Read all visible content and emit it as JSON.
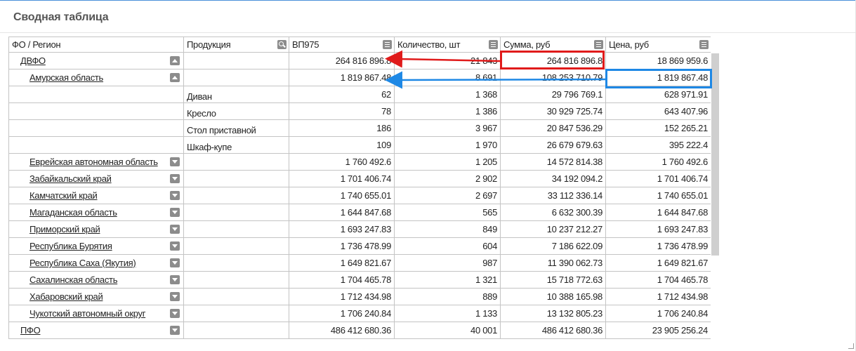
{
  "title": "Сводная таблица",
  "columns": [
    "ФО / Регион",
    "Продукция",
    "ВП975",
    "Количество, шт",
    "Сумма, руб",
    "Цена, руб"
  ],
  "rows": [
    {
      "region": "ДВФО",
      "level": 0,
      "toggle": "up",
      "product": "",
      "vp": "264 816 896.8",
      "qty": "21 843",
      "sum": "264 816 896.8",
      "price": "18 869 959.6"
    },
    {
      "region": "Амурская область",
      "level": 1,
      "toggle": "up",
      "product": "",
      "vp": "1 819 867.48",
      "qty": "8 691",
      "sum": "108 253 710.79",
      "price": "1 819 867.48"
    },
    {
      "region": "",
      "level": 1,
      "toggle": "",
      "product": "Диван",
      "vp": "62",
      "qty": "1 368",
      "sum": "29 796 769.1",
      "price": "628 971.91"
    },
    {
      "region": "",
      "level": 1,
      "toggle": "",
      "product": "Кресло",
      "vp": "78",
      "qty": "1 386",
      "sum": "30 929 725.74",
      "price": "643 407.96"
    },
    {
      "region": "",
      "level": 1,
      "toggle": "",
      "product": "Стол приставной",
      "vp": "186",
      "qty": "3 967",
      "sum": "20 847 536.29",
      "price": "152 265.21"
    },
    {
      "region": "",
      "level": 1,
      "toggle": "",
      "product": "Шкаф-купе",
      "vp": "109",
      "qty": "1 970",
      "sum": "26 679 679.63",
      "price": "395 222.4"
    },
    {
      "region": "Еврейская автономная область",
      "level": 1,
      "toggle": "down",
      "product": "",
      "vp": "1 760 492.6",
      "qty": "1 205",
      "sum": "14 572 814.38",
      "price": "1 760 492.6"
    },
    {
      "region": "Забайкальский край",
      "level": 1,
      "toggle": "down",
      "product": "",
      "vp": "1 701 406.74",
      "qty": "2 902",
      "sum": "34 192 094.2",
      "price": "1 701 406.74"
    },
    {
      "region": "Камчатский край",
      "level": 1,
      "toggle": "down",
      "product": "",
      "vp": "1 740 655.01",
      "qty": "2 697",
      "sum": "33 112 336.14",
      "price": "1 740 655.01"
    },
    {
      "region": "Магаданская область",
      "level": 1,
      "toggle": "down",
      "product": "",
      "vp": "1 644 847.68",
      "qty": "565",
      "sum": "6 632 300.39",
      "price": "1 644 847.68"
    },
    {
      "region": "Приморский край",
      "level": 1,
      "toggle": "down",
      "product": "",
      "vp": "1 693 247.83",
      "qty": "849",
      "sum": "10 237 212.27",
      "price": "1 693 247.83"
    },
    {
      "region": "Республика Бурятия",
      "level": 1,
      "toggle": "down",
      "product": "",
      "vp": "1 736 478.99",
      "qty": "604",
      "sum": "7 186 622.09",
      "price": "1 736 478.99"
    },
    {
      "region": "Республика Саха (Якутия)",
      "level": 1,
      "toggle": "down",
      "product": "",
      "vp": "1 649 821.67",
      "qty": "987",
      "sum": "11 390 062.73",
      "price": "1 649 821.67"
    },
    {
      "region": "Сахалинская область",
      "level": 1,
      "toggle": "down",
      "product": "",
      "vp": "1 704 465.78",
      "qty": "1 321",
      "sum": "15 718 772.63",
      "price": "1 704 465.78"
    },
    {
      "region": "Хабаровский край",
      "level": 1,
      "toggle": "down",
      "product": "",
      "vp": "1 712 434.98",
      "qty": "889",
      "sum": "10 388 165.98",
      "price": "1 712 434.98"
    },
    {
      "region": "Чукотский автономный округ",
      "level": 1,
      "toggle": "down",
      "product": "",
      "vp": "1 706 240.84",
      "qty": "1 133",
      "sum": "13 132 805.23",
      "price": "1 706 240.84"
    },
    {
      "region": "ПФО",
      "level": 0,
      "toggle": "down",
      "product": "",
      "vp": "486 412 680.36",
      "qty": "40 001",
      "sum": "486 412 680.36",
      "price": "23 905 256.24"
    }
  ],
  "colors": {
    "highlight_red": "#e01b1b",
    "highlight_blue": "#1e88e5",
    "header_icon": "#8c8c8c"
  }
}
